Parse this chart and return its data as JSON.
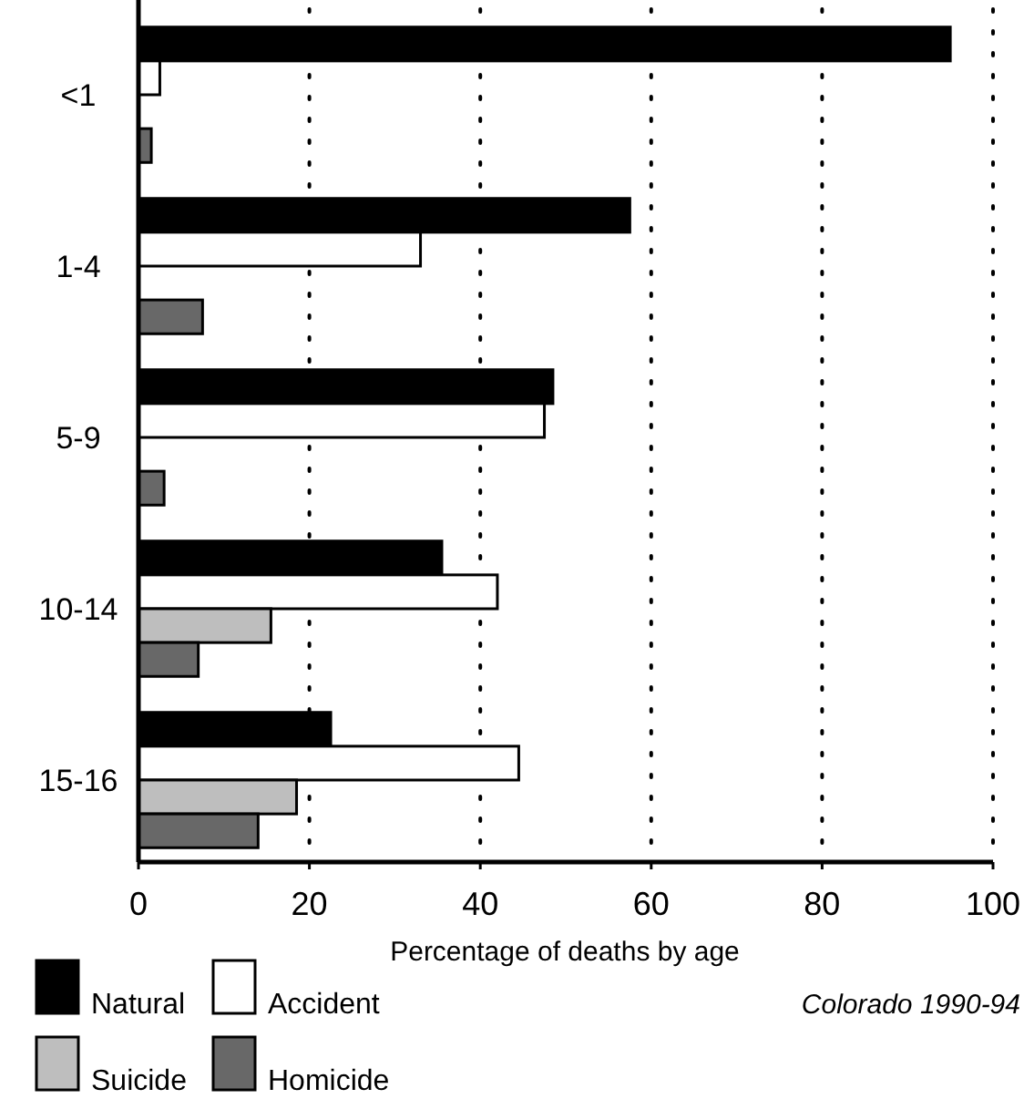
{
  "chart_data": {
    "type": "bar",
    "orientation": "horizontal",
    "categories": [
      "<1",
      "1-4",
      "5-9",
      "10-14",
      "15-16"
    ],
    "series": [
      {
        "name": "Natural",
        "color": "#000000",
        "values": [
          95,
          57.5,
          48.5,
          35.5,
          22.5
        ]
      },
      {
        "name": "Accident",
        "color": "#ffffff",
        "values": [
          2.5,
          33,
          47.5,
          42,
          44.5
        ]
      },
      {
        "name": "Suicide",
        "color": "#bebebe",
        "values": [
          0,
          0,
          0,
          15.5,
          18.5
        ]
      },
      {
        "name": "Homicide",
        "color": "#686868",
        "values": [
          1.5,
          7.5,
          3,
          7,
          14
        ]
      }
    ],
    "xlim": [
      0,
      100
    ],
    "xticks": [
      0,
      20,
      40,
      60,
      80,
      100
    ],
    "xlabel": "Percentage of deaths by age",
    "grid": "x",
    "legend": "bottom left",
    "annotations": [
      "Colorado 1990-94"
    ]
  }
}
